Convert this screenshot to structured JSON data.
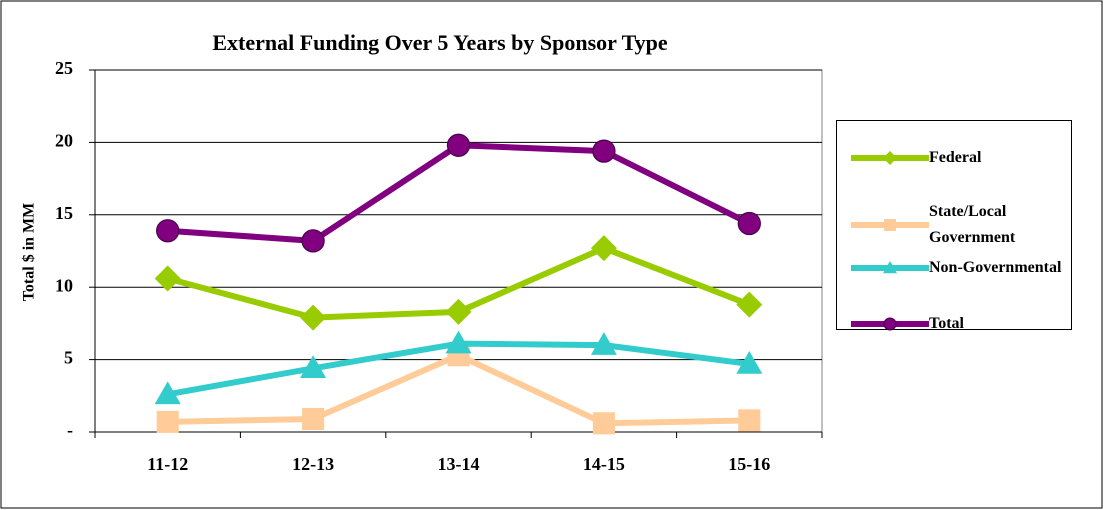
{
  "chart_data": {
    "type": "line",
    "title": "External Funding Over 5 Years by Sponsor Type",
    "y_label": "Total $ in MM",
    "categories": [
      "11-12",
      "12-13",
      "13-14",
      "14-15",
      "15-16"
    ],
    "series": [
      {
        "name": "Federal",
        "color": "#99cc00",
        "marker": "diamond",
        "values": [
          10.6,
          7.9,
          8.3,
          12.7,
          8.8
        ]
      },
      {
        "name": "State/Local Government",
        "color": "#ffcc99",
        "marker": "square",
        "values": [
          0.7,
          0.9,
          5.3,
          0.6,
          0.8
        ]
      },
      {
        "name": "Non-Governmental",
        "color": "#33cccc",
        "marker": "triangle",
        "values": [
          2.6,
          4.4,
          6.1,
          6.0,
          4.7
        ]
      },
      {
        "name": "Total",
        "color": "#800080",
        "marker": "circle",
        "values": [
          13.9,
          13.2,
          19.8,
          19.4,
          14.4
        ]
      }
    ],
    "ylim": [
      0,
      25
    ],
    "yticks": [
      {
        "value": 0,
        "label": "-"
      },
      5,
      10,
      15,
      20,
      25
    ],
    "grid": true,
    "legend": "right"
  }
}
